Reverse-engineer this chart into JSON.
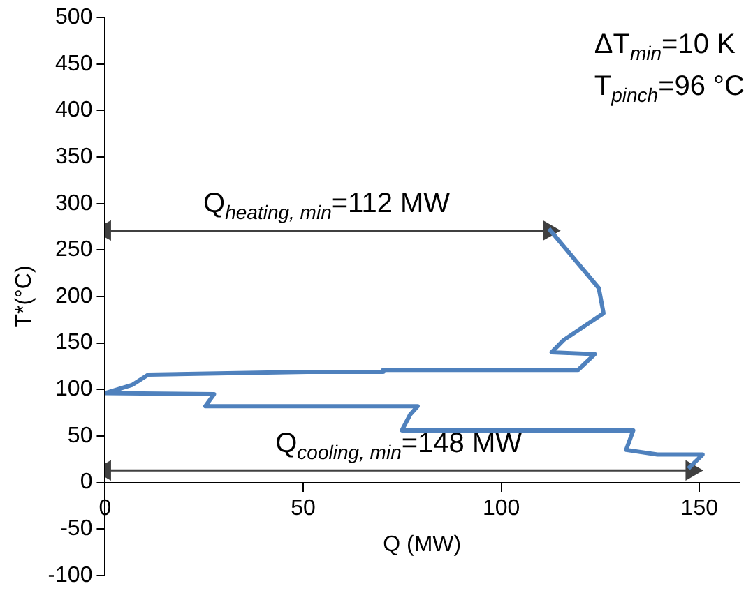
{
  "chart_data": {
    "type": "line",
    "xlabel": "Q (MW)",
    "ylabel": "T*(°C)",
    "x": [
      112,
      124.6,
      125.8,
      115.7,
      112.7,
      123.6,
      119.4,
      70.4,
      70.2,
      51,
      10.9,
      6.9,
      0,
      27.5,
      25.3,
      78.9,
      77,
      74.9,
      133.3,
      131.5,
      139.4,
      150.8,
      147.2
    ],
    "series": [
      {
        "color": "#4f81bd",
        "values": [
          273,
          209,
          182,
          153,
          140,
          138,
          121,
          121,
          119,
          119,
          116,
          105,
          96,
          95,
          82,
          82,
          73,
          56,
          56,
          35,
          30,
          30,
          15
        ]
      },
      {
        "name": "Q$_{heating, min}$=112 MW",
        "color": "#404040",
        "x": [
          0,
          112
        ],
        "values": [
          271,
          271
        ],
        "marker": "triangle"
      },
      {
        "name": "Q$_{cooling, min}$=148 MW",
        "color": "#404040",
        "x": [
          0,
          148
        ],
        "values": [
          13,
          13
        ],
        "marker": "triangle"
      }
    ],
    "xlim": [
      0,
      160
    ],
    "xticks": [
      0,
      50,
      100,
      150
    ],
    "ylim": [
      -100,
      500
    ],
    "yticks": [
      -100,
      -50,
      0,
      50,
      100,
      150,
      200,
      250,
      300,
      350,
      400,
      450,
      500
    ],
    "annotations": [
      "ΔT$_{min}$=10 K",
      "T$_{pinch}$=96 °C"
    ]
  }
}
